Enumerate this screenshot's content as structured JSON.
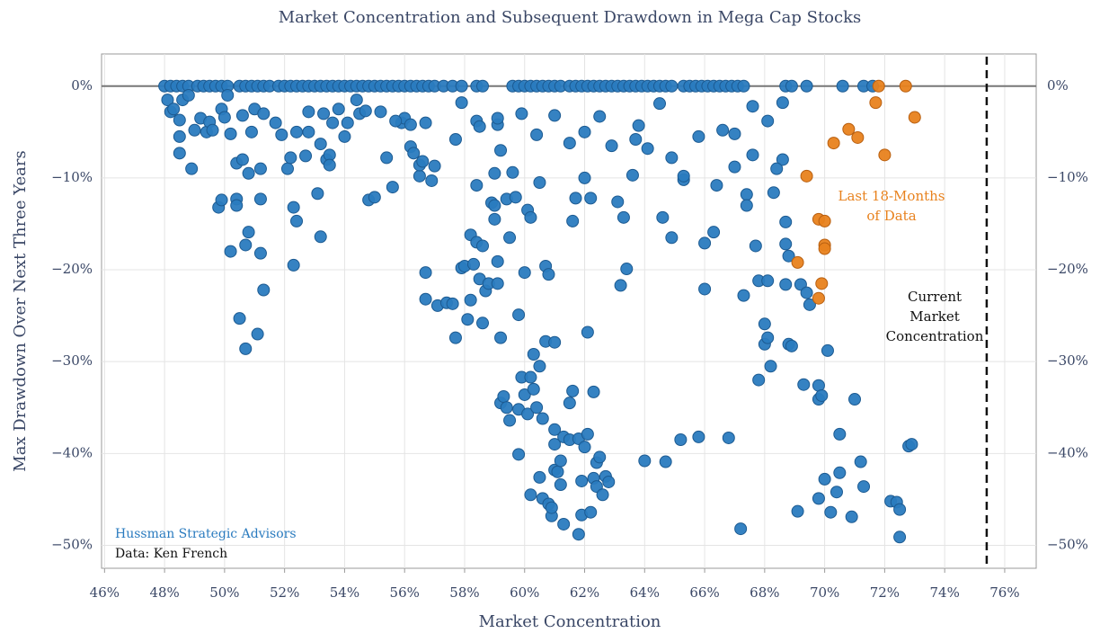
{
  "chart_data": {
    "type": "scatter",
    "title": "Market Concentration and Subsequent Drawdown in Mega Cap Stocks",
    "x_label": "Market Concentration",
    "y_label": "Max Drawdown Over Next Three Years",
    "xlim": [
      45.9,
      77.05
    ],
    "ylim": [
      -52.5,
      3.5
    ],
    "xticks": [
      {
        "value": 46,
        "label": "46%"
      },
      {
        "value": 48,
        "label": "48%"
      },
      {
        "value": 50,
        "label": "50%"
      },
      {
        "value": 52,
        "label": "52%"
      },
      {
        "value": 54,
        "label": "54%"
      },
      {
        "value": 56,
        "label": "56%"
      },
      {
        "value": 58,
        "label": "58%"
      },
      {
        "value": 60,
        "label": "60%"
      },
      {
        "value": 62,
        "label": "62%"
      },
      {
        "value": 64,
        "label": "64%"
      },
      {
        "value": 66,
        "label": "66%"
      },
      {
        "value": 68,
        "label": "68%"
      },
      {
        "value": 70,
        "label": "70%"
      },
      {
        "value": 72,
        "label": "72%"
      },
      {
        "value": 74,
        "label": "74%"
      },
      {
        "value": 76,
        "label": "76%"
      }
    ],
    "yticks": [
      {
        "value": 0,
        "label": "0%"
      },
      {
        "value": -10,
        "label": "−10%"
      },
      {
        "value": -20,
        "label": "−20%"
      },
      {
        "value": -30,
        "label": "−30%"
      },
      {
        "value": -40,
        "label": "−40%"
      },
      {
        "value": -50,
        "label": "−50%"
      }
    ],
    "grid": true,
    "zero_line": 0,
    "reference_line": {
      "x": 75.4,
      "label_lines": [
        "Current",
        "Market",
        "Concentration"
      ]
    },
    "annotation": {
      "lines": [
        "Last 18-Months",
        "of Data"
      ],
      "color": "#e8821e"
    },
    "notes": [
      {
        "text": "Hussman Strategic Advisors",
        "color": "#2a7bbf"
      },
      {
        "text": "Data: Ken French",
        "color": "#111111"
      }
    ],
    "series": [
      {
        "color": "#2a7bbf",
        "x": [
          48.0,
          48.2,
          48.4,
          48.6,
          48.8,
          49.1,
          49.3,
          49.5,
          49.7,
          49.9,
          50.1,
          50.5,
          50.7,
          50.9,
          51.1,
          51.3,
          51.5,
          51.8,
          52.0,
          52.2,
          52.4,
          52.6,
          52.8,
          53.0,
          53.2,
          53.4,
          53.6,
          53.8,
          54.0,
          54.2,
          54.4,
          54.6,
          54.8,
          55.0,
          55.2,
          55.4,
          55.6,
          55.8,
          56.0,
          56.2,
          56.4,
          56.6,
          56.8,
          57.0,
          57.3,
          57.6,
          57.9,
          58.4,
          58.6,
          59.6,
          59.8,
          60.0,
          60.2,
          60.4,
          60.6,
          60.8,
          61.0,
          61.2,
          61.5,
          61.7,
          61.9,
          62.1,
          62.3,
          62.5,
          62.7,
          62.9,
          63.1,
          63.3,
          63.5,
          63.7,
          63.9,
          64.1,
          64.3,
          64.5,
          64.7,
          64.9,
          65.3,
          65.5,
          65.7,
          65.9,
          66.1,
          66.3,
          66.5,
          66.7,
          66.9,
          67.1,
          67.3,
          68.7,
          68.9,
          69.4,
          70.6,
          71.3,
          71.6,
          48.1,
          48.2,
          48.3,
          48.5,
          48.6,
          48.5,
          48.5,
          48.9,
          48.8,
          49.2,
          49.4,
          49.5,
          49.6,
          49.8,
          49.9,
          49.9,
          50.1,
          50.2,
          50.2,
          50.4,
          50.4,
          50.4,
          50.5,
          50.6,
          50.6,
          50.7,
          50.7,
          50.8,
          50.8,
          50.9,
          51.0,
          51.1,
          51.2,
          51.2,
          51.2,
          51.3,
          51.3,
          51.7,
          51.9,
          52.1,
          52.2,
          52.3,
          52.3,
          52.4,
          52.4,
          52.7,
          52.8,
          52.8,
          53.1,
          53.2,
          53.2,
          53.3,
          53.4,
          53.5,
          53.5,
          53.6,
          53.8,
          54.0,
          54.1,
          54.4,
          54.5,
          54.7,
          54.8,
          55.0,
          55.2,
          55.4,
          55.6,
          55.9,
          56.0,
          56.2,
          56.3,
          56.5,
          56.5,
          56.6,
          56.7,
          56.7,
          56.7,
          56.9,
          57.0,
          57.1,
          57.4,
          57.6,
          57.7,
          57.9,
          57.9,
          58.0,
          58.1,
          58.2,
          58.2,
          58.3,
          58.4,
          58.4,
          58.4,
          58.5,
          58.6,
          58.6,
          58.7,
          58.8,
          58.9,
          59.0,
          59.0,
          59.0,
          59.1,
          59.1,
          59.1,
          59.2,
          59.2,
          59.2,
          59.3,
          59.4,
          59.4,
          59.5,
          59.5,
          59.6,
          59.7,
          59.8,
          59.8,
          59.8,
          59.9,
          60.0,
          60.0,
          60.1,
          60.1,
          60.2,
          60.2,
          60.2,
          60.3,
          60.3,
          60.4,
          60.4,
          60.5,
          60.5,
          60.6,
          60.6,
          60.7,
          60.7,
          60.8,
          60.8,
          60.9,
          60.9,
          61.0,
          61.0,
          61.0,
          61.0,
          61.1,
          61.2,
          61.2,
          61.3,
          61.3,
          61.5,
          61.5,
          61.6,
          61.6,
          61.7,
          61.8,
          61.8,
          61.9,
          61.9,
          62.0,
          62.0,
          62.1,
          62.1,
          62.2,
          62.2,
          62.3,
          62.3,
          62.4,
          62.4,
          62.5,
          62.6,
          62.7,
          62.8,
          62.9,
          63.1,
          63.2,
          63.3,
          63.4,
          63.6,
          63.7,
          64.0,
          64.1,
          64.6,
          64.7,
          64.9,
          65.2,
          65.3,
          65.8,
          66.0,
          66.0,
          66.3,
          66.4,
          66.8,
          67.0,
          67.2,
          67.3,
          67.4,
          67.4,
          67.7,
          67.8,
          67.8,
          68.0,
          68.0,
          68.1,
          68.1,
          68.2,
          68.3,
          68.7,
          68.7,
          68.7,
          68.8,
          68.8,
          68.9,
          69.1,
          69.2,
          69.3,
          69.4,
          69.5,
          69.8,
          69.8,
          69.8,
          69.9,
          70.0,
          70.1,
          70.2,
          70.4,
          70.5,
          70.5,
          70.9,
          71.0,
          71.2,
          71.3,
          72.2,
          72.4,
          72.5,
          72.5,
          72.8,
          72.9,
          68.6,
          68.6,
          68.4,
          68.1,
          67.6,
          67.6,
          67.0,
          66.6,
          65.8,
          65.3,
          64.9,
          64.5,
          63.8,
          62.5,
          62.0,
          61.5,
          61.0,
          60.5,
          59.9,
          59.1,
          58.5,
          57.7,
          56.2,
          55.7,
          49.0,
          50.0
        ],
        "values": [
          0,
          0,
          0,
          0,
          0,
          0,
          0,
          0,
          0,
          0,
          0,
          0,
          0,
          0,
          0,
          0,
          0,
          0,
          0,
          0,
          0,
          0,
          0,
          0,
          0,
          0,
          0,
          0,
          0,
          0,
          0,
          0,
          0,
          0,
          0,
          0,
          0,
          0,
          0,
          0,
          0,
          0,
          0,
          0,
          0,
          0,
          0,
          0,
          0,
          0,
          0,
          0,
          0,
          0,
          0,
          0,
          0,
          0,
          0,
          0,
          0,
          0,
          0,
          0,
          0,
          0,
          0,
          0,
          0,
          0,
          0,
          0,
          0,
          0,
          0,
          0,
          0,
          0,
          0,
          0,
          0,
          0,
          0,
          0,
          0,
          0,
          0,
          0,
          0,
          0,
          0,
          0,
          0,
          -1.5,
          -2.8,
          -2.5,
          -3.7,
          -1.5,
          -5.5,
          -7.3,
          -9,
          -1,
          -3.5,
          -5,
          -3.9,
          -4.8,
          -13.2,
          -12.4,
          -2.5,
          -1,
          -5.2,
          -18,
          -12.3,
          -13,
          -8.4,
          -25.3,
          -8,
          -3.2,
          -17.3,
          -28.6,
          -15.9,
          -9.5,
          -5,
          -2.5,
          -27,
          -18.2,
          -9,
          -12.3,
          -22.2,
          -3,
          -4,
          -5.3,
          -9,
          -7.8,
          -19.5,
          -13.2,
          -14.7,
          -5,
          -7.6,
          -2.8,
          -5,
          -11.7,
          -16.4,
          -6.3,
          -3,
          -8,
          -7.5,
          -8.6,
          -4,
          -2.5,
          -5.5,
          -4,
          -1.5,
          -3,
          -2.7,
          -12.4,
          -12.1,
          -2.8,
          -7.8,
          -11,
          -4,
          -3.5,
          -6.6,
          -7.3,
          -9.8,
          -8.6,
          -8.2,
          -4,
          -20.3,
          -23.2,
          -10.3,
          -8.7,
          -23.9,
          -23.6,
          -23.7,
          -27.4,
          -1.8,
          -19.8,
          -19.6,
          -25.4,
          -23.3,
          -16.2,
          -19.4,
          -17,
          -10.8,
          -3.8,
          -21,
          -17.4,
          -25.8,
          -22.3,
          -21.5,
          -12.7,
          -13,
          -9.5,
          -14.5,
          -19.1,
          -21.5,
          -4.2,
          -7,
          -27.4,
          -34.5,
          -33.8,
          -35,
          -12.3,
          -16.5,
          -36.4,
          -9.4,
          -12.1,
          -24.9,
          -40.1,
          -35.2,
          -31.7,
          -20.3,
          -33.6,
          -35.7,
          -13.5,
          -44.5,
          -31.7,
          -14.3,
          -29.2,
          -33,
          -35,
          -5.3,
          -42.6,
          -30.5,
          -36.2,
          -44.9,
          -27.8,
          -19.6,
          -45.5,
          -20.5,
          -46.8,
          -45.9,
          -27.9,
          -37.4,
          -41.8,
          -39,
          -42,
          -43.4,
          -40.8,
          -47.7,
          -38.2,
          -38.5,
          -34.5,
          -33.2,
          -14.7,
          -12.2,
          -38.4,
          -48.8,
          -46.7,
          -43,
          -10,
          -39.3,
          -26.8,
          -37.9,
          -12.2,
          -46.4,
          -33.3,
          -42.7,
          -41,
          -43.6,
          -40.4,
          -44.5,
          -42.5,
          -43.1,
          -6.5,
          -12.6,
          -21.7,
          -14.3,
          -19.9,
          -9.7,
          -5.8,
          -40.8,
          -6.8,
          -14.3,
          -40.9,
          -16.5,
          -38.5,
          -10.2,
          -38.2,
          -22.1,
          -17.1,
          -15.9,
          -10.8,
          -38.3,
          -8.8,
          -48.2,
          -22.8,
          -11.8,
          -13,
          -17.4,
          -32,
          -21.2,
          -25.9,
          -28.1,
          -27.4,
          -21.2,
          -30.5,
          -11.6,
          -14.8,
          -17.2,
          -21.6,
          -18.5,
          -28.1,
          -28.3,
          -46.3,
          -21.6,
          -32.5,
          -22.5,
          -23.8,
          -32.6,
          -34.1,
          -44.9,
          -33.7,
          -42.8,
          -28.8,
          -46.4,
          -44.2,
          -42.1,
          -37.9,
          -46.9,
          -34.1,
          -40.9,
          -43.6,
          -45.2,
          -45.3,
          -46.1,
          -49.1,
          -39.2,
          -39,
          -1.8,
          -8,
          -9,
          -3.8,
          -7.5,
          -2.2,
          -5.2,
          -4.8,
          -5.5,
          -9.8,
          -7.8,
          -1.9,
          -4.3,
          -3.3,
          -5,
          -6.2,
          -3.2,
          -10.5,
          -3,
          -3.5,
          -4.4,
          -5.8,
          -4.2,
          -3.8,
          -4.8,
          -3.4
        ]
      },
      {
        "color": "#e8821e",
        "x": [
          69.4,
          69.1,
          69.8,
          69.9,
          69.8,
          70.0,
          70.0,
          70.0,
          70.3,
          70.8,
          71.1,
          72.0,
          71.7,
          71.8,
          72.7,
          73.0
        ],
        "values": [
          -9.8,
          -19.2,
          -23.1,
          -21.5,
          -14.5,
          -14.7,
          -17.3,
          -17.7,
          -6.2,
          -4.7,
          -5.6,
          -7.5,
          -1.8,
          0,
          0,
          -3.4
        ]
      }
    ]
  }
}
